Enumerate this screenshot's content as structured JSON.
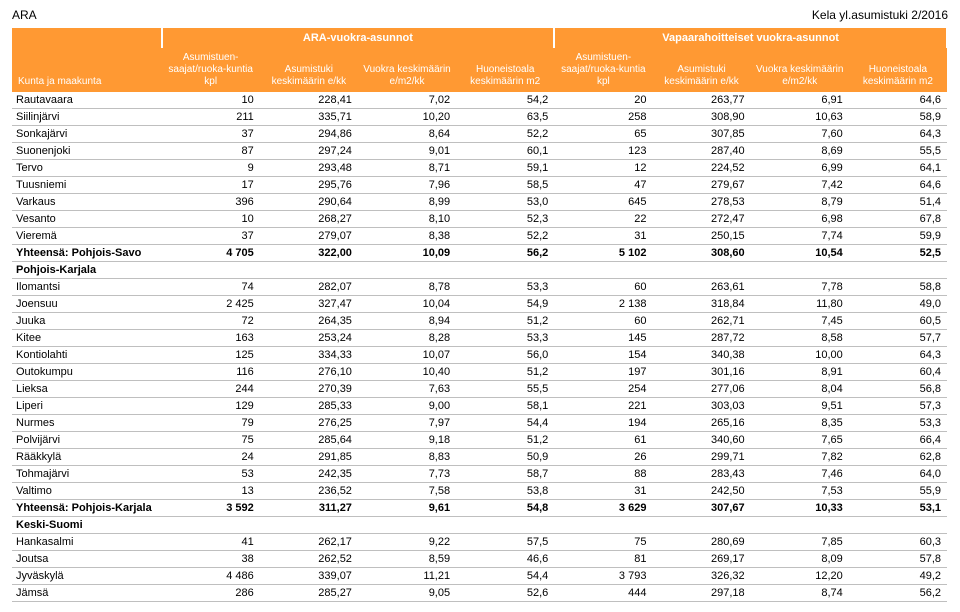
{
  "header": {
    "left": "ARA",
    "right": "Kela yl.asumistuki 2/2016"
  },
  "groups": {
    "g1": "ARA-vuokra-asunnot",
    "g2": "Vapaarahoitteiset vuokra-asunnot"
  },
  "columns": [
    "Kunta ja maakunta",
    "Asumistuen-saajat/ruoka-kuntia kpl",
    "Asumistuki keskimäärin e/kk",
    "Vuokra keskimäärin e/m2/kk",
    "Huoneistoala keskimäärin m2",
    "Asumistuen-saajat/ruoka-kuntia kpl",
    "Asumistuki keskimäärin e/kk",
    "Vuokra keskimäärin e/m2/kk",
    "Huoneistoala keskimäärin m2"
  ],
  "rows": [
    {
      "n": "Rautavaara",
      "v": [
        "10",
        "228,41",
        "7,02",
        "54,2",
        "20",
        "263,77",
        "6,91",
        "64,6"
      ]
    },
    {
      "n": "Siilinjärvi",
      "v": [
        "211",
        "335,71",
        "10,20",
        "63,5",
        "258",
        "308,90",
        "10,63",
        "58,9"
      ]
    },
    {
      "n": "Sonkajärvi",
      "v": [
        "37",
        "294,86",
        "8,64",
        "52,2",
        "65",
        "307,85",
        "7,60",
        "64,3"
      ]
    },
    {
      "n": "Suonenjoki",
      "v": [
        "87",
        "297,24",
        "9,01",
        "60,1",
        "123",
        "287,40",
        "8,69",
        "55,5"
      ]
    },
    {
      "n": "Tervo",
      "v": [
        "9",
        "293,48",
        "8,71",
        "59,1",
        "12",
        "224,52",
        "6,99",
        "64,1"
      ]
    },
    {
      "n": "Tuusniemi",
      "v": [
        "17",
        "295,76",
        "7,96",
        "58,5",
        "47",
        "279,67",
        "7,42",
        "64,6"
      ]
    },
    {
      "n": "Varkaus",
      "v": [
        "396",
        "290,64",
        "8,99",
        "53,0",
        "645",
        "278,53",
        "8,79",
        "51,4"
      ]
    },
    {
      "n": "Vesanto",
      "v": [
        "10",
        "268,27",
        "8,10",
        "52,3",
        "22",
        "272,47",
        "6,98",
        "67,8"
      ]
    },
    {
      "n": "Vieremä",
      "v": [
        "37",
        "279,07",
        "8,38",
        "52,2",
        "31",
        "250,15",
        "7,74",
        "59,9"
      ]
    },
    {
      "n": "Yhteensä: Pohjois-Savo",
      "v": [
        "4 705",
        "322,00",
        "10,09",
        "56,2",
        "5 102",
        "308,60",
        "10,54",
        "52,5"
      ],
      "b": true
    },
    {
      "n": "Pohjois-Karjala",
      "v": [
        "",
        "",
        "",
        "",
        "",
        "",
        "",
        ""
      ],
      "b": true
    },
    {
      "n": "Ilomantsi",
      "v": [
        "74",
        "282,07",
        "8,78",
        "53,3",
        "60",
        "263,61",
        "7,78",
        "58,8"
      ]
    },
    {
      "n": "Joensuu",
      "v": [
        "2 425",
        "327,47",
        "10,04",
        "54,9",
        "2 138",
        "318,84",
        "11,80",
        "49,0"
      ]
    },
    {
      "n": "Juuka",
      "v": [
        "72",
        "264,35",
        "8,94",
        "51,2",
        "60",
        "262,71",
        "7,45",
        "60,5"
      ]
    },
    {
      "n": "Kitee",
      "v": [
        "163",
        "253,24",
        "8,28",
        "53,3",
        "145",
        "287,72",
        "8,58",
        "57,7"
      ]
    },
    {
      "n": "Kontiolahti",
      "v": [
        "125",
        "334,33",
        "10,07",
        "56,0",
        "154",
        "340,38",
        "10,00",
        "64,3"
      ]
    },
    {
      "n": "Outokumpu",
      "v": [
        "116",
        "276,10",
        "10,40",
        "51,2",
        "197",
        "301,16",
        "8,91",
        "60,4"
      ]
    },
    {
      "n": "Lieksa",
      "v": [
        "244",
        "270,39",
        "7,63",
        "55,5",
        "254",
        "277,06",
        "8,04",
        "56,8"
      ]
    },
    {
      "n": "Liperi",
      "v": [
        "129",
        "285,33",
        "9,00",
        "58,1",
        "221",
        "303,03",
        "9,51",
        "57,3"
      ]
    },
    {
      "n": "Nurmes",
      "v": [
        "79",
        "276,25",
        "7,97",
        "54,4",
        "194",
        "265,16",
        "8,35",
        "53,3"
      ]
    },
    {
      "n": "Polvijärvi",
      "v": [
        "75",
        "285,64",
        "9,18",
        "51,2",
        "61",
        "340,60",
        "7,65",
        "66,4"
      ]
    },
    {
      "n": "Rääkkylä",
      "v": [
        "24",
        "291,85",
        "8,83",
        "50,9",
        "26",
        "299,71",
        "7,82",
        "62,8"
      ]
    },
    {
      "n": "Tohmajärvi",
      "v": [
        "53",
        "242,35",
        "7,73",
        "58,7",
        "88",
        "283,43",
        "7,46",
        "64,0"
      ]
    },
    {
      "n": "Valtimo",
      "v": [
        "13",
        "236,52",
        "7,58",
        "53,8",
        "31",
        "242,50",
        "7,53",
        "55,9"
      ]
    },
    {
      "n": "Yhteensä: Pohjois-Karjala",
      "v": [
        "3 592",
        "311,27",
        "9,61",
        "54,8",
        "3 629",
        "307,67",
        "10,33",
        "53,1"
      ],
      "b": true
    },
    {
      "n": "Keski-Suomi",
      "v": [
        "",
        "",
        "",
        "",
        "",
        "",
        "",
        ""
      ],
      "b": true
    },
    {
      "n": "Hankasalmi",
      "v": [
        "41",
        "262,17",
        "9,22",
        "57,5",
        "75",
        "280,69",
        "7,85",
        "60,3"
      ]
    },
    {
      "n": "Joutsa",
      "v": [
        "38",
        "262,52",
        "8,59",
        "46,6",
        "81",
        "269,17",
        "8,09",
        "57,8"
      ]
    },
    {
      "n": "Jyväskylä",
      "v": [
        "4 486",
        "339,07",
        "11,21",
        "54,4",
        "3 793",
        "326,32",
        "12,20",
        "49,2"
      ]
    },
    {
      "n": "Jämsä",
      "v": [
        "286",
        "285,27",
        "9,05",
        "52,6",
        "444",
        "297,18",
        "8,74",
        "56,2"
      ]
    }
  ]
}
